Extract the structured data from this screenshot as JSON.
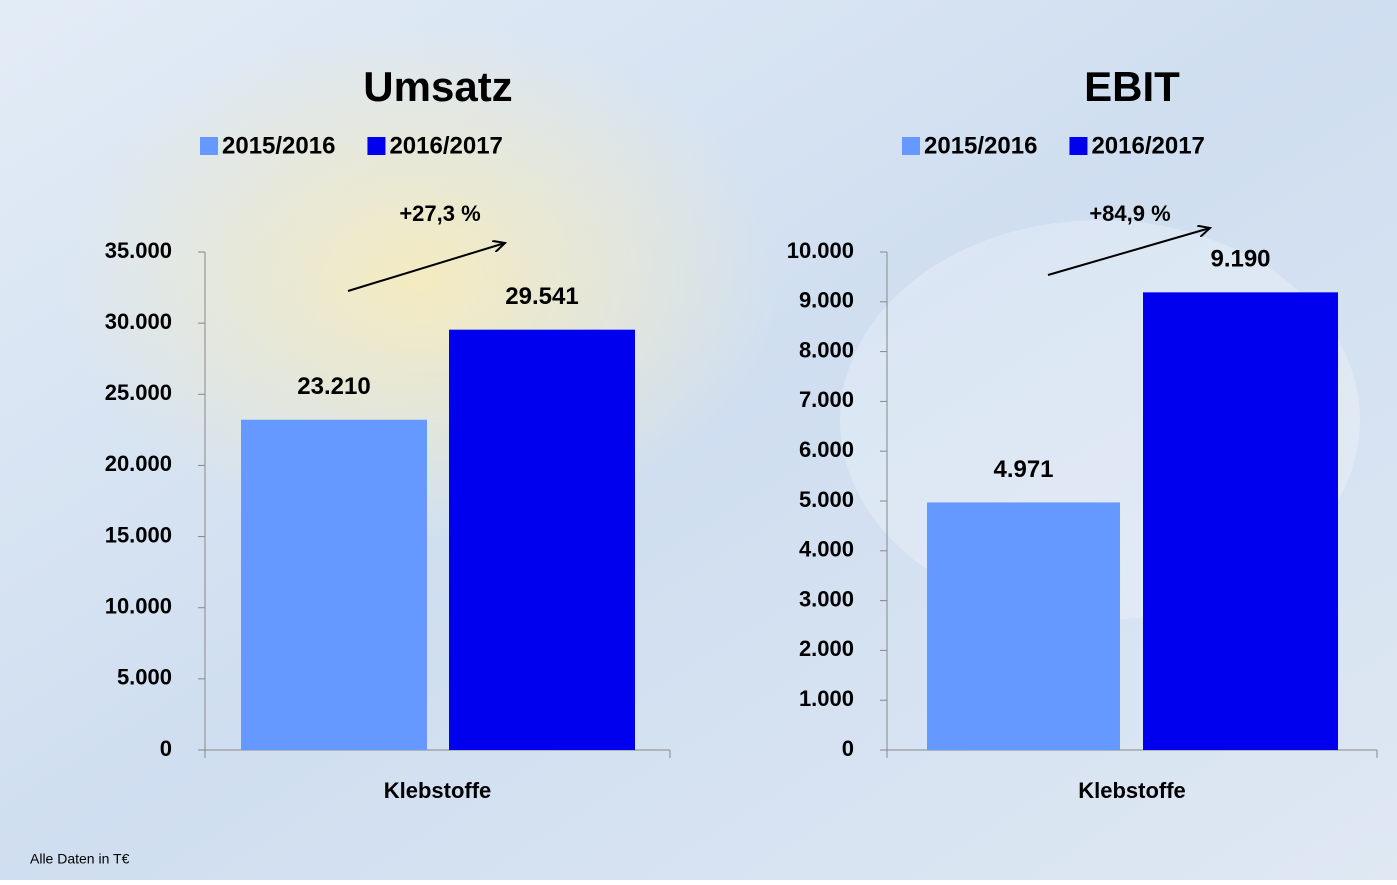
{
  "chart_data": [
    {
      "type": "bar",
      "title": "Umsatz",
      "categories": [
        "Klebstoffe"
      ],
      "series": [
        {
          "name": "2015/2016",
          "color": "#6699ff",
          "values": [
            23210
          ],
          "value_labels": [
            "23.210"
          ]
        },
        {
          "name": "2016/2017",
          "color": "#0000ee",
          "values": [
            29541
          ],
          "value_labels": [
            "29.541"
          ]
        }
      ],
      "annotation": "+27,3 %",
      "ylim": [
        0,
        35000
      ],
      "yticks": [
        0,
        {
          "value": 5000,
          "label": "5.000"
        },
        {
          "value": 10000,
          "label": "10.000"
        },
        {
          "value": 15000,
          "label": "15.000"
        },
        {
          "value": 20000,
          "label": "20.000"
        },
        {
          "value": 25000,
          "label": "25.000"
        },
        {
          "value": 30000,
          "label": "30.000"
        },
        {
          "value": 35000,
          "label": "35.000"
        }
      ],
      "legend": "top"
    },
    {
      "type": "bar",
      "title": "EBIT",
      "categories": [
        "Klebstoffe"
      ],
      "series": [
        {
          "name": "2015/2016",
          "color": "#6699ff",
          "values": [
            4971
          ],
          "value_labels": [
            "4.971"
          ]
        },
        {
          "name": "2016/2017",
          "color": "#0000ee",
          "values": [
            9190
          ],
          "value_labels": [
            "9.190"
          ]
        }
      ],
      "annotation": "+84,9 %",
      "ylim": [
        0,
        10000
      ],
      "yticks": [
        0,
        {
          "value": 1000,
          "label": "1.000"
        },
        {
          "value": 2000,
          "label": "2.000"
        },
        {
          "value": 3000,
          "label": "3.000"
        },
        {
          "value": 4000,
          "label": "4.000"
        },
        {
          "value": 5000,
          "label": "5.000"
        },
        {
          "value": 6000,
          "label": "6.000"
        },
        {
          "value": 7000,
          "label": "7.000"
        },
        {
          "value": 8000,
          "label": "8.000"
        },
        {
          "value": 9000,
          "label": "9.000"
        },
        {
          "value": 10000,
          "label": "10.000"
        }
      ],
      "legend": "top"
    }
  ],
  "footnote": "Alle Daten in T€"
}
